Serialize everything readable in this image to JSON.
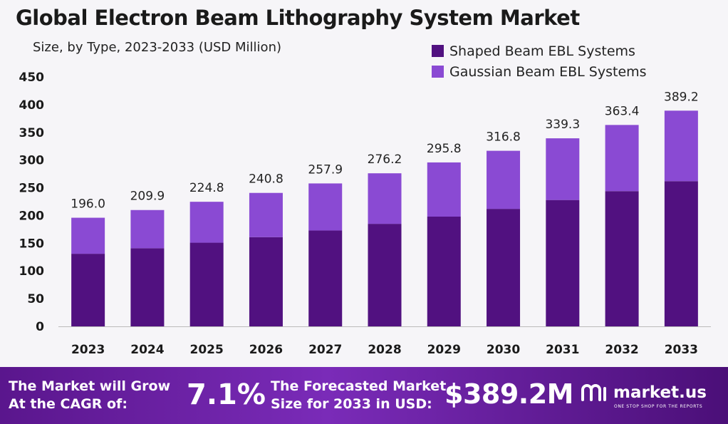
{
  "header": {
    "title": "Global Electron Beam Lithography System Market",
    "subtitle": "Size, by Type, 2023-2033 (USD Million)"
  },
  "colors": {
    "shaped": "#511180",
    "gaussian": "#8a4ad3",
    "footer_start": "#5a168d",
    "footer_end": "#4b0f78"
  },
  "chart_data": {
    "type": "bar",
    "stacked": true,
    "categories": [
      "2023",
      "2024",
      "2025",
      "2026",
      "2027",
      "2028",
      "2029",
      "2030",
      "2031",
      "2032",
      "2033"
    ],
    "series": [
      {
        "name": "Shaped Beam EBL Systems",
        "values": [
          131,
          141,
          151,
          161,
          173,
          185,
          198,
          212,
          228,
          244,
          262
        ]
      },
      {
        "name": "Gaussian Beam EBL Systems",
        "values": [
          65.0,
          68.9,
          73.8,
          79.8,
          84.9,
          91.2,
          97.8,
          104.8,
          111.3,
          119.4,
          127.2
        ]
      }
    ],
    "totals": [
      "196.0",
      "209.9",
      "224.8",
      "240.8",
      "257.9",
      "276.2",
      "295.8",
      "316.8",
      "339.3",
      "363.4",
      "389.2"
    ],
    "y_ticks": [
      "0",
      "50",
      "100",
      "150",
      "200",
      "250",
      "300",
      "350",
      "400",
      "450"
    ],
    "ylim": [
      0,
      450
    ],
    "grid": false,
    "legend_position": "top-right"
  },
  "footer": {
    "cagr_text_line1": "The Market will Grow",
    "cagr_text_line2": "At the CAGR of:",
    "cagr_value": "7.1%",
    "forecast_text_line1": "The Forecasted Market",
    "forecast_text_line2": "Size for 2033 in USD:",
    "forecast_value": "$389.2M",
    "brand_name": "market.us",
    "brand_tagline": "ONE STOP SHOP FOR THE REPORTS",
    "brand_icon": "market-us-logo-icon"
  }
}
